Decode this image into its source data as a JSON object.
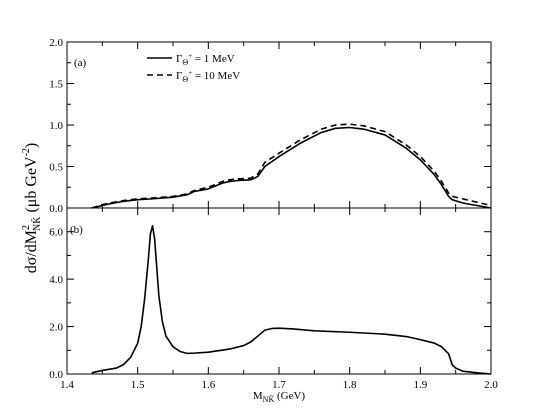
{
  "chart_data": [
    {
      "type": "line",
      "panel": "(a)",
      "xlim": [
        1.4,
        2.0
      ],
      "ylim": [
        0.0,
        2.0
      ],
      "yticks": [
        "0.0",
        "0.5",
        "1.0",
        "1.5",
        "2.0"
      ],
      "legend": {
        "placement": "upper-left"
      },
      "series": [
        {
          "name": "Γ_Θ+ = 1 MeV",
          "label_main": "Γ",
          "label_sub": "Θ",
          "label_sup": "+",
          "label_rest": " = 1 MeV",
          "style": "solid",
          "x": [
            1.435,
            1.45,
            1.46,
            1.48,
            1.5,
            1.52,
            1.55,
            1.57,
            1.58,
            1.6,
            1.62,
            1.63,
            1.64,
            1.66,
            1.67,
            1.68,
            1.7,
            1.73,
            1.76,
            1.78,
            1.8,
            1.82,
            1.85,
            1.88,
            1.9,
            1.92,
            1.93,
            1.94,
            1.945,
            1.96,
            1.98,
            2.0
          ],
          "y": [
            0.0,
            0.03,
            0.05,
            0.08,
            0.1,
            0.11,
            0.13,
            0.16,
            0.2,
            0.23,
            0.3,
            0.32,
            0.33,
            0.34,
            0.38,
            0.5,
            0.62,
            0.78,
            0.91,
            0.96,
            0.97,
            0.95,
            0.88,
            0.72,
            0.58,
            0.4,
            0.28,
            0.14,
            0.1,
            0.06,
            0.03,
            0.0
          ]
        },
        {
          "name": "Γ_Θ+ = 10 MeV",
          "label_main": "Γ",
          "label_sub": "Θ",
          "label_sup": "+",
          "label_rest": " = 10 MeV",
          "style": "dashed",
          "x": [
            1.435,
            1.45,
            1.46,
            1.48,
            1.5,
            1.52,
            1.55,
            1.57,
            1.58,
            1.6,
            1.62,
            1.63,
            1.64,
            1.66,
            1.67,
            1.68,
            1.7,
            1.73,
            1.76,
            1.78,
            1.8,
            1.82,
            1.85,
            1.88,
            1.9,
            1.92,
            1.93,
            1.94,
            1.945,
            1.96,
            1.98,
            2.0
          ],
          "y": [
            0.0,
            0.04,
            0.06,
            0.09,
            0.11,
            0.12,
            0.14,
            0.17,
            0.21,
            0.25,
            0.32,
            0.34,
            0.35,
            0.36,
            0.41,
            0.55,
            0.66,
            0.82,
            0.95,
            1.0,
            1.01,
            0.99,
            0.92,
            0.76,
            0.62,
            0.44,
            0.32,
            0.18,
            0.14,
            0.11,
            0.07,
            0.03
          ]
        }
      ]
    },
    {
      "type": "line",
      "panel": "(b)",
      "xlim": [
        1.4,
        2.0
      ],
      "ylim": [
        0.0,
        7.0
      ],
      "yticks": [
        "0.0",
        "2.0",
        "4.0",
        "6.0"
      ],
      "xticks": [
        "1.4",
        "1.5",
        "1.6",
        "1.7",
        "1.8",
        "1.9",
        "2.0"
      ],
      "series": [
        {
          "style": "solid",
          "x": [
            1.435,
            1.45,
            1.47,
            1.48,
            1.49,
            1.5,
            1.505,
            1.51,
            1.515,
            1.518,
            1.521,
            1.524,
            1.527,
            1.53,
            1.535,
            1.54,
            1.55,
            1.56,
            1.57,
            1.58,
            1.6,
            1.63,
            1.65,
            1.66,
            1.67,
            1.68,
            1.69,
            1.7,
            1.72,
            1.75,
            1.8,
            1.85,
            1.88,
            1.9,
            1.92,
            1.93,
            1.94,
            1.945,
            1.95,
            1.96,
            1.98,
            2.0
          ],
          "y": [
            0.05,
            0.15,
            0.25,
            0.4,
            0.7,
            1.3,
            2.0,
            3.2,
            4.8,
            5.9,
            6.25,
            5.7,
            4.5,
            3.3,
            2.2,
            1.6,
            1.15,
            0.95,
            0.87,
            0.88,
            0.92,
            1.05,
            1.2,
            1.35,
            1.6,
            1.85,
            1.92,
            1.93,
            1.9,
            1.82,
            1.76,
            1.68,
            1.58,
            1.45,
            1.3,
            1.15,
            0.85,
            0.4,
            0.25,
            0.12,
            0.05,
            0.0
          ]
        }
      ]
    }
  ],
  "labels": {
    "panel_a": "(a)",
    "panel_b": "(b)",
    "ylabel_main": "dσ/dM",
    "ylabel_sup": "2",
    "ylabel_sub": "NK̄",
    "ylabel_units": " (μb GeV",
    "ylabel_units_sup": "-2",
    "ylabel_close": ")",
    "xlabel_main": "M",
    "xlabel_sub": "NK̄",
    "xlabel_units": " (GeV)"
  }
}
